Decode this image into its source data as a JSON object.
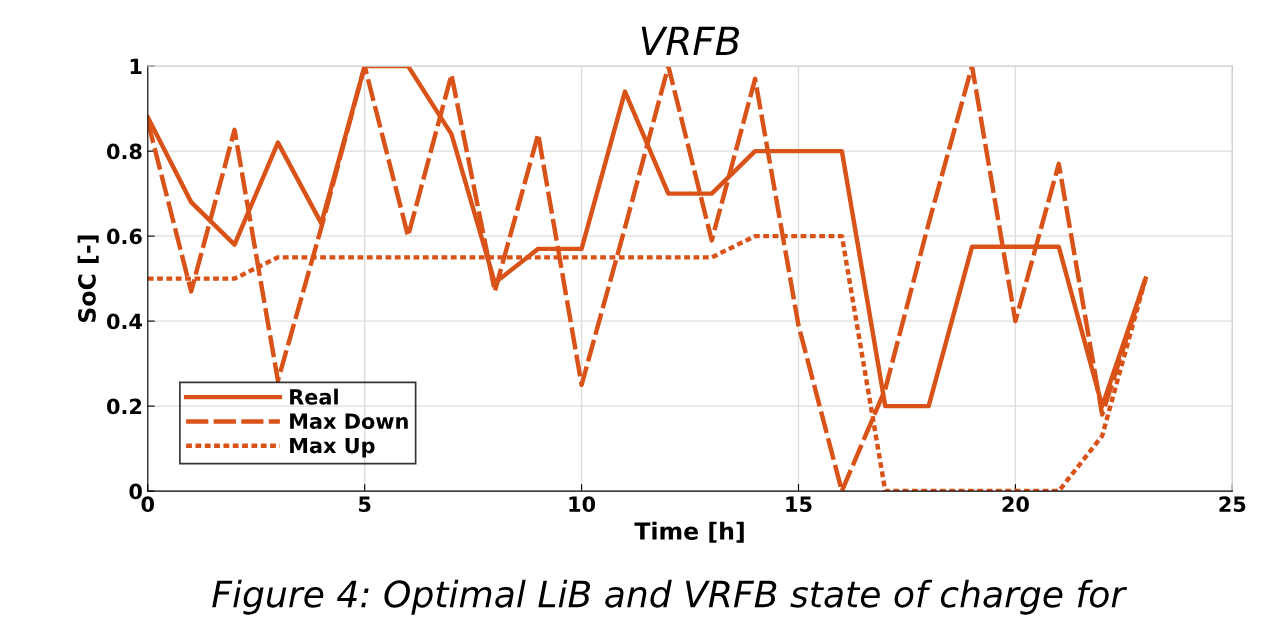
{
  "chart_data": {
    "type": "line",
    "title": "VRFB",
    "xlabel": "Time [h]",
    "ylabel": "SoC [-]",
    "x": [
      0,
      1,
      2,
      3,
      4,
      5,
      6,
      7,
      8,
      9,
      10,
      11,
      12,
      13,
      14,
      15,
      16,
      17,
      18,
      19,
      20,
      21,
      22,
      23
    ],
    "series": [
      {
        "name": "Real",
        "color": "#d95319",
        "line_style": "solid",
        "values": [
          0.88,
          0.68,
          0.58,
          0.82,
          0.63,
          1.0,
          1.0,
          0.84,
          0.49,
          0.57,
          0.57,
          0.94,
          0.7,
          0.7,
          0.8,
          0.8,
          0.8,
          0.2,
          0.2,
          0.575,
          0.575,
          0.575,
          0.2,
          0.5
        ]
      },
      {
        "name": "Max Down",
        "color": "#d95319",
        "line_style": "dashed",
        "values": [
          0.87,
          0.47,
          0.85,
          0.26,
          0.62,
          1.0,
          0.6,
          0.98,
          0.47,
          0.84,
          0.25,
          0.62,
          1.0,
          0.59,
          0.97,
          0.39,
          0.0,
          0.24,
          0.63,
          1.0,
          0.4,
          0.77,
          0.18,
          0.5
        ]
      },
      {
        "name": "Max Up",
        "color": "#d95319",
        "line_style": "dotted",
        "values": [
          0.5,
          0.5,
          0.5,
          0.55,
          0.55,
          0.55,
          0.55,
          0.55,
          0.55,
          0.55,
          0.55,
          0.55,
          0.55,
          0.55,
          0.6,
          0.6,
          0.6,
          0.0,
          0.0,
          0.0,
          0.0,
          0.0,
          0.13,
          0.5
        ]
      }
    ],
    "xlim": [
      0,
      25
    ],
    "xticks": [
      0,
      5,
      10,
      15,
      20,
      25
    ],
    "ylim": [
      0,
      1
    ],
    "yticks": [
      0,
      0.2,
      0.4,
      0.6,
      0.8,
      1
    ],
    "grid": true,
    "legend": "bottom left",
    "marker": "none",
    "annotations": [
      "Figure 4: Optimal LiB and VRFB state of charge for"
    ]
  }
}
